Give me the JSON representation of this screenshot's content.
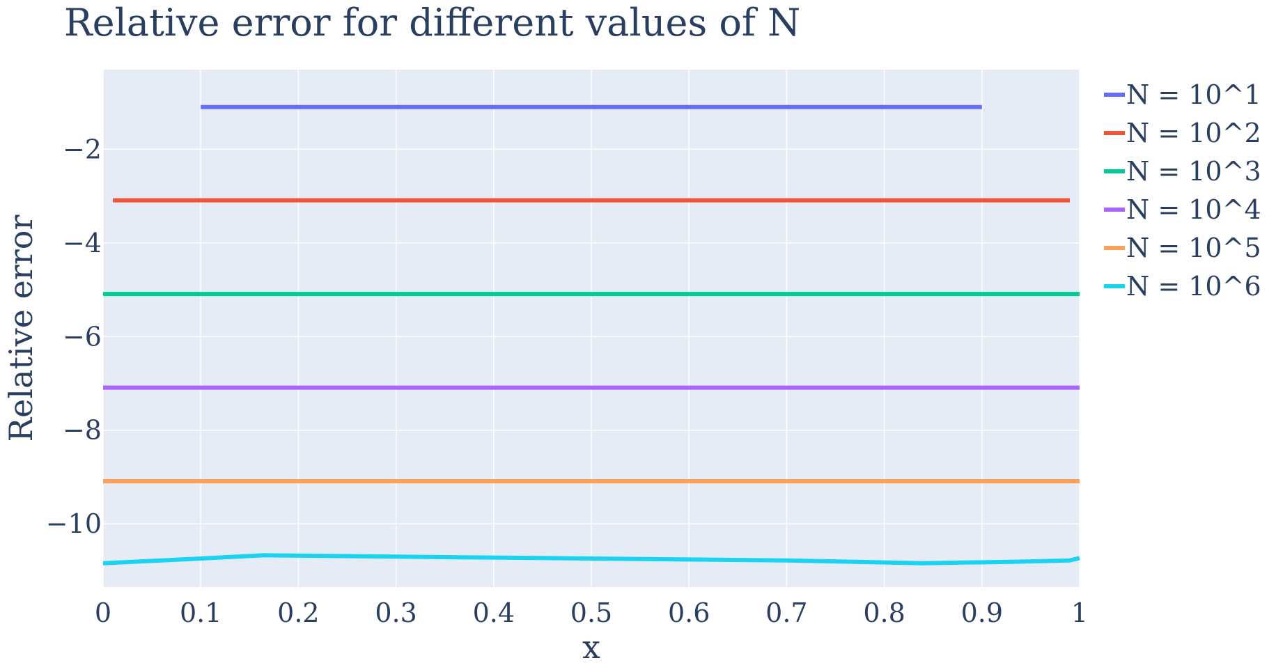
{
  "chart_data": {
    "type": "line",
    "title": "Relative error for different values of N",
    "xlabel": "x",
    "ylabel": "Relative error",
    "xlim": [
      0,
      1
    ],
    "ylim": [
      -11.35,
      -0.3
    ],
    "x_ticks": [
      0,
      0.1,
      0.2,
      0.3,
      0.4,
      0.5,
      0.6,
      0.7,
      0.8,
      0.9,
      1
    ],
    "x_tick_labels": [
      "0",
      "0.1",
      "0.2",
      "0.3",
      "0.4",
      "0.5",
      "0.6",
      "0.7",
      "0.8",
      "0.9",
      "1"
    ],
    "y_ticks": [
      -2,
      -4,
      -6,
      -8,
      -10
    ],
    "y_tick_labels": [
      "−2",
      "−4",
      "−6",
      "−8",
      "−10"
    ],
    "grid": true,
    "legend_position": "right",
    "plot_background": "#e5ecf6",
    "series": [
      {
        "name": "N = 10^1",
        "color": "#636efa",
        "x": [
          0.1,
          0.2,
          0.3,
          0.4,
          0.5,
          0.6,
          0.7,
          0.8,
          0.9
        ],
        "y": [
          -1.1,
          -1.1,
          -1.1,
          -1.1,
          -1.1,
          -1.1,
          -1.1,
          -1.1,
          -1.1
        ]
      },
      {
        "name": "N = 10^2",
        "color": "#ef553b",
        "x": [
          0.01,
          0.25,
          0.5,
          0.75,
          0.99
        ],
        "y": [
          -3.09,
          -3.09,
          -3.09,
          -3.09,
          -3.09
        ]
      },
      {
        "name": "N = 10^3",
        "color": "#00cc96",
        "x": [
          0,
          0.25,
          0.5,
          0.75,
          1
        ],
        "y": [
          -5.09,
          -5.09,
          -5.09,
          -5.09,
          -5.09
        ]
      },
      {
        "name": "N = 10^4",
        "color": "#ab63fa",
        "x": [
          0,
          0.25,
          0.5,
          0.75,
          1
        ],
        "y": [
          -7.09,
          -7.09,
          -7.09,
          -7.09,
          -7.09
        ]
      },
      {
        "name": "N = 10^5",
        "color": "#ffa15a",
        "x": [
          0,
          0.25,
          0.5,
          0.75,
          1
        ],
        "y": [
          -9.09,
          -9.09,
          -9.09,
          -9.09,
          -9.09
        ]
      },
      {
        "name": "N = 10^6",
        "color": "#19d3f3",
        "x": [
          0,
          0.1,
          0.165,
          0.3,
          0.5,
          0.7,
          0.84,
          0.93,
          0.99,
          1
        ],
        "y": [
          -10.84,
          -10.74,
          -10.67,
          -10.7,
          -10.74,
          -10.78,
          -10.84,
          -10.81,
          -10.78,
          -10.73
        ]
      }
    ]
  }
}
